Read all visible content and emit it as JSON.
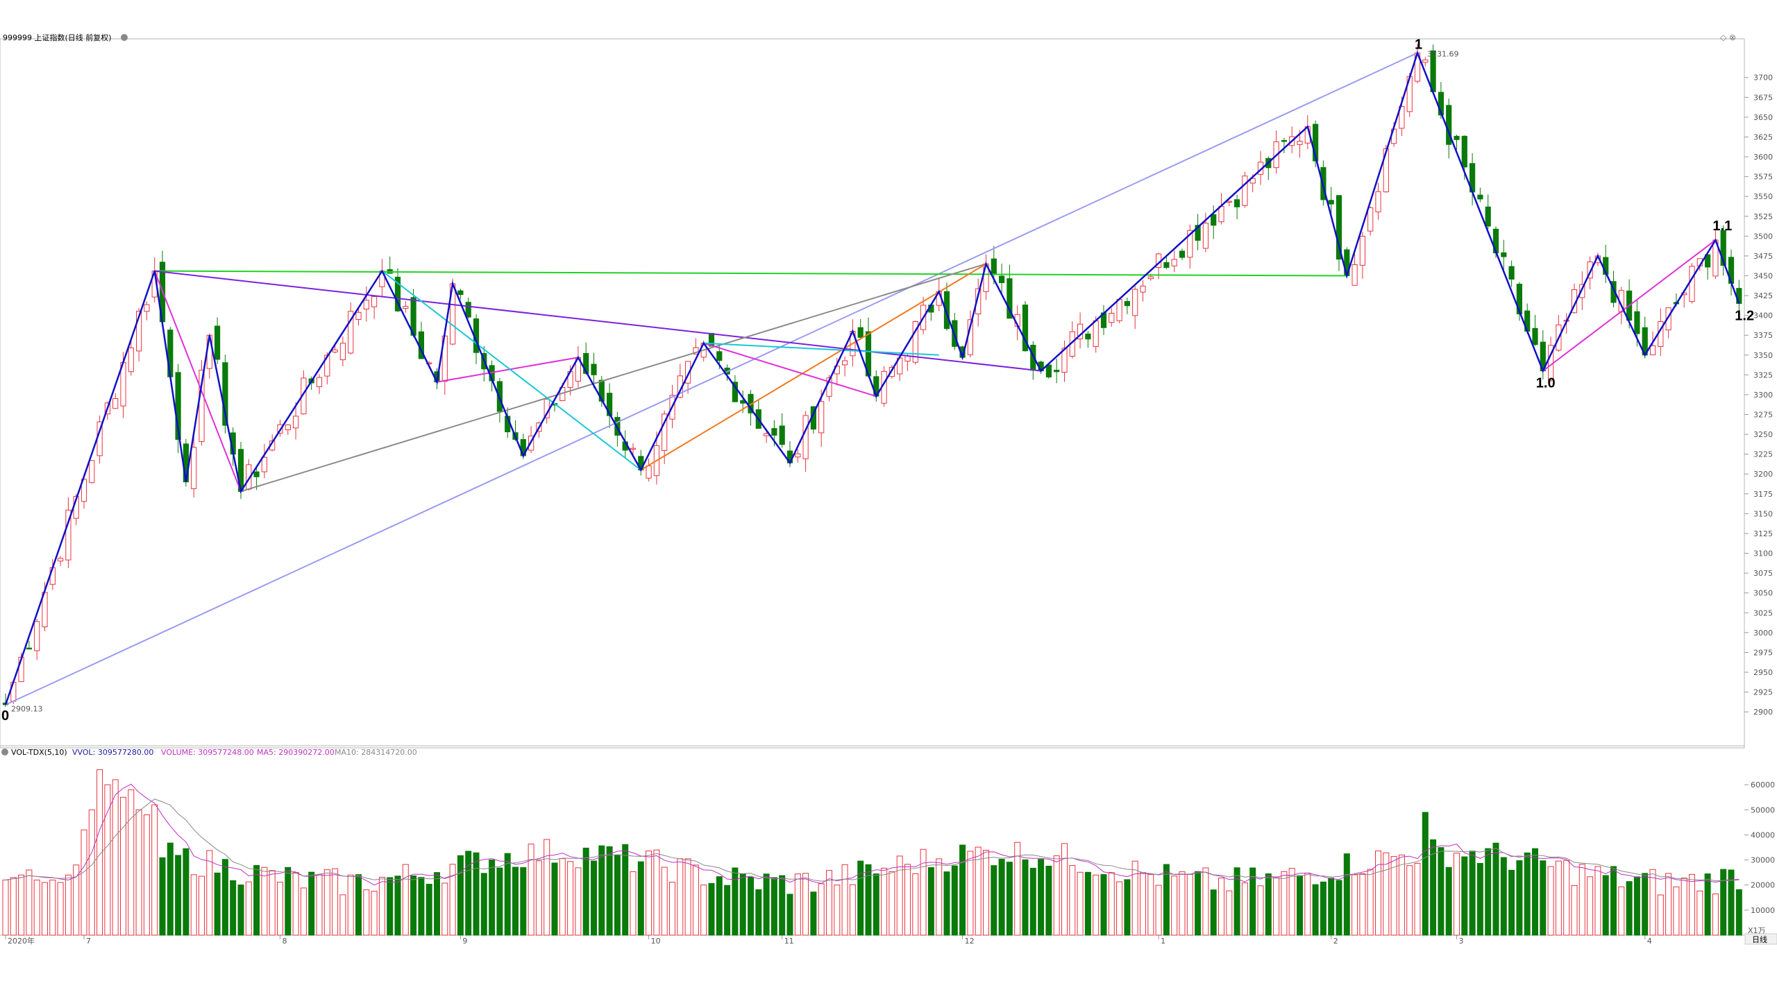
{
  "header": {
    "title": "999999 上证指数(日线 前复权)"
  },
  "volume_header": {
    "indicator": "VOL-TDX(5,10)",
    "vvol": "VVOL: 309577280.00",
    "volume": "VOLUME: 309577248.00",
    "ma5": "MA5: 290390272.00",
    "ma10": "MA10: 284314720.00"
  },
  "right_axis": {
    "period_button": "日线",
    "volume_unit": "X1万"
  },
  "wave_labels": [
    "0",
    "1",
    "1.0",
    "1.1",
    "1.2"
  ],
  "price_annotations": {
    "low": "2909.13",
    "high": "3731.69"
  },
  "colors": {
    "up": "#e8333e",
    "down": "#0a7a0a",
    "wave_main": "#1010c8",
    "trend_long": "#9b9bf2",
    "neckline": "#21d321",
    "channel_purple": "#7a22dd",
    "pink": "#e030d8",
    "cyan": "#18c8d8",
    "gray": "#8a8a8a",
    "orange": "#f07a20",
    "vol_ma5": "#c030c0",
    "vol_ma10": "#888888"
  },
  "chart_data": {
    "type": "candlestick",
    "title": "999999 上证指数(日线 前复权)",
    "price_axis": {
      "ylim": [
        2880,
        3740
      ],
      "ticks": [
        2900,
        2925,
        2950,
        2975,
        3000,
        3025,
        3050,
        3075,
        3100,
        3125,
        3150,
        3175,
        3200,
        3225,
        3250,
        3275,
        3300,
        3325,
        3350,
        3375,
        3400,
        3425,
        3450,
        3475,
        3500,
        3525,
        3550,
        3575,
        3600,
        3625,
        3650,
        3675,
        3700
      ]
    },
    "volume_axis": {
      "ylim": [
        0,
        70000
      ],
      "ticks": [
        10000,
        20000,
        30000,
        40000,
        50000,
        60000
      ],
      "unit": "X1万"
    },
    "x_axis_labels": [
      {
        "i": 0,
        "label": "2020年"
      },
      {
        "i": 10,
        "label": "7"
      },
      {
        "i": 35,
        "label": "8"
      },
      {
        "i": 58,
        "label": "9"
      },
      {
        "i": 82,
        "label": "10"
      },
      {
        "i": 99,
        "label": "11"
      },
      {
        "i": 122,
        "label": "12"
      },
      {
        "i": 147,
        "label": "1"
      },
      {
        "i": 169,
        "label": "2"
      },
      {
        "i": 185,
        "label": "3"
      },
      {
        "i": 209,
        "label": "4"
      }
    ],
    "pivots": [
      {
        "i": 0,
        "price": 2909
      },
      {
        "i": 19,
        "price": 3456
      },
      {
        "i": 23,
        "price": 3190
      },
      {
        "i": 26,
        "price": 3375
      },
      {
        "i": 30,
        "price": 3178
      },
      {
        "i": 48,
        "price": 3456
      },
      {
        "i": 55,
        "price": 3316
      },
      {
        "i": 57,
        "price": 3440
      },
      {
        "i": 66,
        "price": 3223
      },
      {
        "i": 73,
        "price": 3347
      },
      {
        "i": 81,
        "price": 3205
      },
      {
        "i": 89,
        "price": 3365
      },
      {
        "i": 100,
        "price": 3214
      },
      {
        "i": 108,
        "price": 3380
      },
      {
        "i": 111,
        "price": 3298
      },
      {
        "i": 119,
        "price": 3430
      },
      {
        "i": 122,
        "price": 3347
      },
      {
        "i": 125,
        "price": 3465
      },
      {
        "i": 132,
        "price": 3330
      },
      {
        "i": 166,
        "price": 3638
      },
      {
        "i": 171,
        "price": 3450
      },
      {
        "i": 180,
        "price": 3731
      },
      {
        "i": 196,
        "price": 3330
      },
      {
        "i": 203,
        "price": 3475
      },
      {
        "i": 209,
        "price": 3350
      },
      {
        "i": 218,
        "price": 3495
      },
      {
        "i": 221,
        "price": 3415
      }
    ],
    "volume_sample": [
      22000,
      23000,
      24000,
      26000,
      22000,
      21000,
      22000,
      21000,
      24000,
      28000,
      42000,
      50000,
      66000,
      60000,
      62000,
      55000,
      58000,
      50000,
      48000,
      52000
    ],
    "annotations": {
      "labels": [
        {
          "text": "0",
          "i": 0,
          "price": 2909
        },
        {
          "text": "1",
          "i": 180,
          "price": 3731
        },
        {
          "text": "1.0",
          "i": 196,
          "price": 3330
        },
        {
          "text": "1.1",
          "i": 218,
          "price": 3495
        },
        {
          "text": "1.2",
          "i": 221,
          "price": 3415
        }
      ],
      "prices": [
        {
          "text": "2909.13",
          "i": 0,
          "price": 2909.13
        },
        {
          "text": "3731.69",
          "i": 180,
          "price": 3731.69
        }
      ]
    }
  }
}
